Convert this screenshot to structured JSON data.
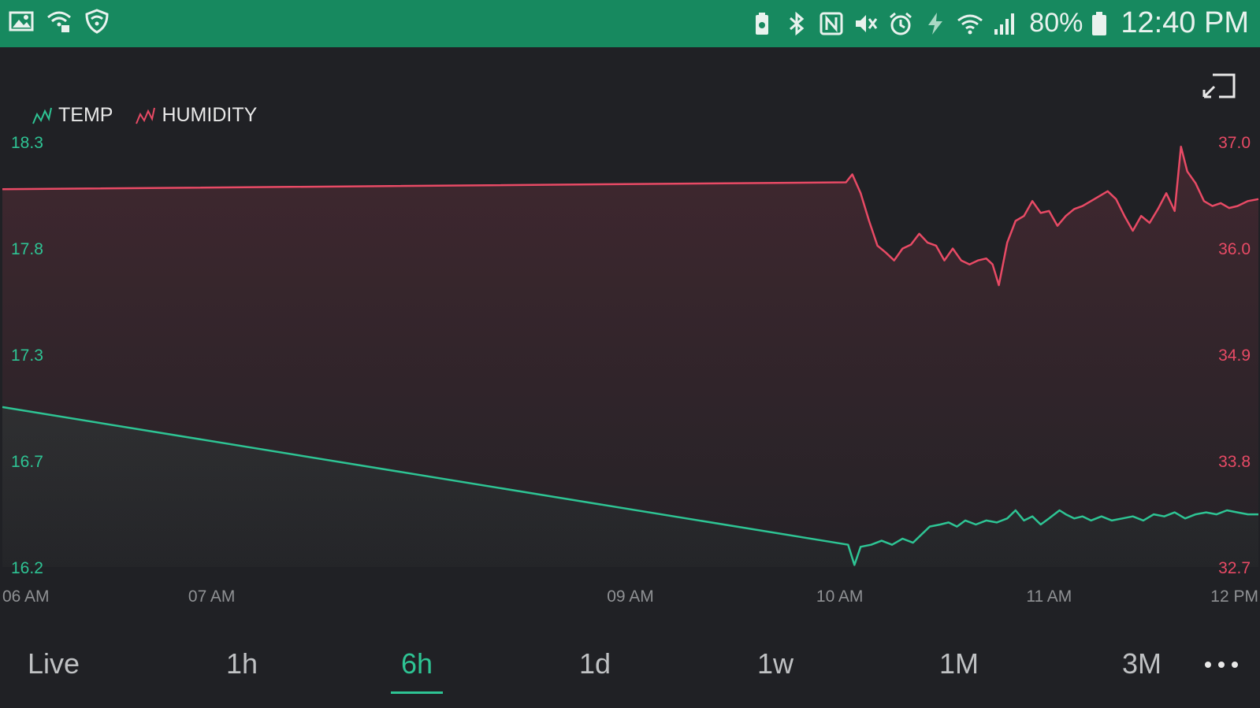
{
  "status_bar": {
    "left_icons": [
      "image-icon",
      "wifi-lock-icon",
      "shield-icon"
    ],
    "right_icons": [
      "battery-saver-icon",
      "bluetooth-icon",
      "nfc-icon",
      "mute-icon",
      "alarm-icon",
      "charging-icon",
      "wifi-icon",
      "signal-icon"
    ],
    "battery": "80%",
    "time": "12:40 PM"
  },
  "legend": [
    {
      "label": "TEMP",
      "color": "#2ec494"
    },
    {
      "label": "HUMIDITY",
      "color": "#e84a65"
    }
  ],
  "tabs": [
    {
      "label": "Live"
    },
    {
      "label": "1h"
    },
    {
      "label": "6h",
      "active": true
    },
    {
      "label": "1d"
    },
    {
      "label": "1w"
    },
    {
      "label": "1M"
    },
    {
      "label": "3M"
    }
  ],
  "colors": {
    "background": "#202125",
    "status_bar": "#17895f",
    "accent": "#2ec494",
    "humidity": "#e84a65"
  },
  "chart_data": {
    "type": "area",
    "x_ticks": [
      "06 AM",
      "07 AM",
      "09 AM",
      "10 AM",
      "11 AM",
      "12 PM"
    ],
    "x_tick_hours": [
      6,
      7,
      9,
      10,
      11,
      12
    ],
    "xlim": [
      6,
      12
    ],
    "y_left": {
      "ticks": [
        "18.3",
        "17.8",
        "17.3",
        "16.7",
        "16.2"
      ],
      "lim": [
        16.2,
        18.3
      ]
    },
    "y_right": {
      "ticks": [
        "37.0",
        "36.0",
        "34.9",
        "33.8",
        "32.7"
      ],
      "lim": [
        32.7,
        37.0
      ]
    },
    "series": [
      {
        "name": "TEMP",
        "axis": "left",
        "color": "#2ec494",
        "points": [
          [
            6.0,
            16.99
          ],
          [
            10.04,
            16.31
          ],
          [
            10.07,
            16.21
          ],
          [
            10.1,
            16.3
          ],
          [
            10.15,
            16.31
          ],
          [
            10.2,
            16.33
          ],
          [
            10.25,
            16.31
          ],
          [
            10.3,
            16.34
          ],
          [
            10.35,
            16.32
          ],
          [
            10.4,
            16.37
          ],
          [
            10.43,
            16.4
          ],
          [
            10.48,
            16.41
          ],
          [
            10.52,
            16.42
          ],
          [
            10.56,
            16.4
          ],
          [
            10.6,
            16.43
          ],
          [
            10.65,
            16.41
          ],
          [
            10.7,
            16.43
          ],
          [
            10.75,
            16.42
          ],
          [
            10.8,
            16.44
          ],
          [
            10.84,
            16.48
          ],
          [
            10.88,
            16.43
          ],
          [
            10.92,
            16.45
          ],
          [
            10.96,
            16.41
          ],
          [
            11.0,
            16.44
          ],
          [
            11.05,
            16.48
          ],
          [
            11.08,
            16.46
          ],
          [
            11.12,
            16.44
          ],
          [
            11.16,
            16.45
          ],
          [
            11.2,
            16.43
          ],
          [
            11.25,
            16.45
          ],
          [
            11.3,
            16.43
          ],
          [
            11.35,
            16.44
          ],
          [
            11.4,
            16.45
          ],
          [
            11.45,
            16.43
          ],
          [
            11.5,
            16.46
          ],
          [
            11.55,
            16.45
          ],
          [
            11.6,
            16.47
          ],
          [
            11.65,
            16.44
          ],
          [
            11.7,
            16.46
          ],
          [
            11.75,
            16.47
          ],
          [
            11.8,
            16.46
          ],
          [
            11.85,
            16.48
          ],
          [
            11.9,
            16.47
          ],
          [
            11.95,
            16.46
          ],
          [
            12.0,
            16.46
          ]
        ]
      },
      {
        "name": "HUMIDITY",
        "axis": "right",
        "color": "#e84a65",
        "points": [
          [
            6.0,
            36.52
          ],
          [
            10.03,
            36.59
          ],
          [
            10.06,
            36.67
          ],
          [
            10.1,
            36.48
          ],
          [
            10.14,
            36.2
          ],
          [
            10.18,
            35.95
          ],
          [
            10.22,
            35.88
          ],
          [
            10.26,
            35.8
          ],
          [
            10.3,
            35.92
          ],
          [
            10.34,
            35.96
          ],
          [
            10.38,
            36.07
          ],
          [
            10.42,
            35.98
          ],
          [
            10.46,
            35.95
          ],
          [
            10.5,
            35.8
          ],
          [
            10.54,
            35.92
          ],
          [
            10.58,
            35.8
          ],
          [
            10.62,
            35.76
          ],
          [
            10.66,
            35.8
          ],
          [
            10.7,
            35.82
          ],
          [
            10.73,
            35.76
          ],
          [
            10.76,
            35.55
          ],
          [
            10.8,
            35.98
          ],
          [
            10.84,
            36.2
          ],
          [
            10.88,
            36.25
          ],
          [
            10.92,
            36.4
          ],
          [
            10.96,
            36.28
          ],
          [
            11.0,
            36.3
          ],
          [
            11.04,
            36.15
          ],
          [
            11.08,
            36.25
          ],
          [
            11.12,
            36.32
          ],
          [
            11.16,
            36.35
          ],
          [
            11.2,
            36.4
          ],
          [
            11.24,
            36.45
          ],
          [
            11.28,
            36.5
          ],
          [
            11.32,
            36.42
          ],
          [
            11.36,
            36.25
          ],
          [
            11.4,
            36.1
          ],
          [
            11.44,
            36.25
          ],
          [
            11.48,
            36.18
          ],
          [
            11.52,
            36.32
          ],
          [
            11.56,
            36.48
          ],
          [
            11.6,
            36.3
          ],
          [
            11.63,
            36.95
          ],
          [
            11.66,
            36.7
          ],
          [
            11.7,
            36.58
          ],
          [
            11.74,
            36.4
          ],
          [
            11.78,
            36.35
          ],
          [
            11.82,
            36.38
          ],
          [
            11.86,
            36.33
          ],
          [
            11.9,
            36.35
          ],
          [
            11.95,
            36.4
          ],
          [
            12.0,
            36.42
          ]
        ]
      }
    ]
  }
}
